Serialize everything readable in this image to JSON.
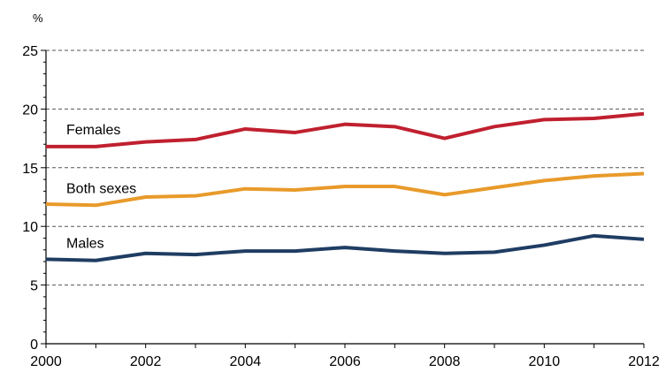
{
  "chart_data": {
    "type": "line",
    "unit_label": "%",
    "x": [
      2000,
      2001,
      2002,
      2003,
      2004,
      2005,
      2006,
      2007,
      2008,
      2009,
      2010,
      2011,
      2012
    ],
    "xticks": [
      "2000",
      "2002",
      "2004",
      "2006",
      "2008",
      "2010",
      "2012"
    ],
    "xlim": [
      2000,
      2012
    ],
    "ylim": [
      0,
      25
    ],
    "yticks": [
      "0",
      "5",
      "10",
      "15",
      "20",
      "25"
    ],
    "grid": true,
    "series": [
      {
        "name": "Females",
        "color": "#c0202f",
        "values": [
          16.8,
          16.8,
          17.2,
          17.4,
          18.3,
          18.0,
          18.7,
          18.5,
          17.5,
          18.5,
          19.1,
          19.2,
          19.6
        ]
      },
      {
        "name": "Both sexes",
        "color": "#e89a2a",
        "values": [
          11.9,
          11.8,
          12.5,
          12.6,
          13.2,
          13.1,
          13.4,
          13.4,
          12.7,
          13.3,
          13.9,
          14.3,
          14.5
        ]
      },
      {
        "name": "Males",
        "color": "#1f3d63",
        "values": [
          7.2,
          7.1,
          7.7,
          7.6,
          7.9,
          7.9,
          8.2,
          7.9,
          7.7,
          7.8,
          8.4,
          9.2,
          8.9
        ]
      }
    ]
  }
}
